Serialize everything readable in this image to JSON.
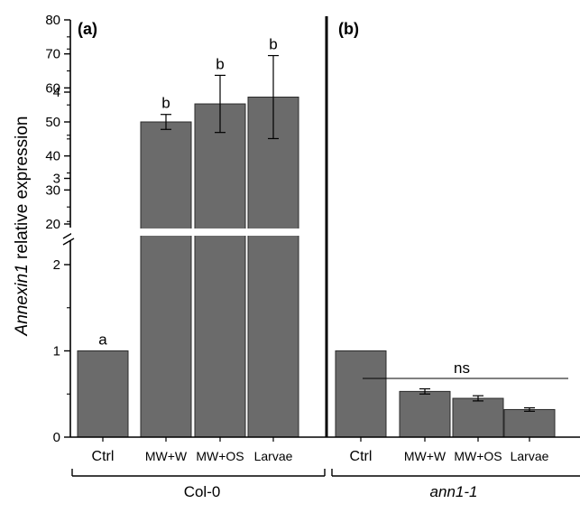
{
  "chart_data": {
    "type": "bar",
    "ylabel_italic": "Annexin1",
    "ylabel_rest": " relative expression",
    "y_axis": {
      "scale": "broken",
      "lower_range": [
        0,
        5
      ],
      "upper_range": [
        20,
        80
      ],
      "lower_ticks": [
        "0",
        "1",
        "2",
        "3",
        "4"
      ],
      "upper_ticks": [
        "20",
        "30",
        "40",
        "50",
        "60",
        "70",
        "80"
      ]
    },
    "bar_color": "#6b6b6b",
    "panels": [
      {
        "label": "(a)",
        "group": "Col-0",
        "group_italic": false,
        "categories": [
          "Ctrl",
          "MW+W",
          "MW+OS",
          "Larvae"
        ],
        "values": [
          1.0,
          50.0,
          55.3,
          57.3
        ],
        "errors": [
          0,
          2.2,
          8.4,
          12.2
        ],
        "letters": [
          "a",
          "b",
          "b",
          "b"
        ]
      },
      {
        "label": "(b)",
        "group": "ann1-1",
        "group_italic": true,
        "categories": [
          "Ctrl",
          "MW+W",
          "MW+OS",
          "Larvae"
        ],
        "values": [
          1.0,
          0.53,
          0.45,
          0.32
        ],
        "errors": [
          0,
          0.03,
          0.03,
          0.02
        ],
        "annotation": "ns"
      }
    ]
  }
}
